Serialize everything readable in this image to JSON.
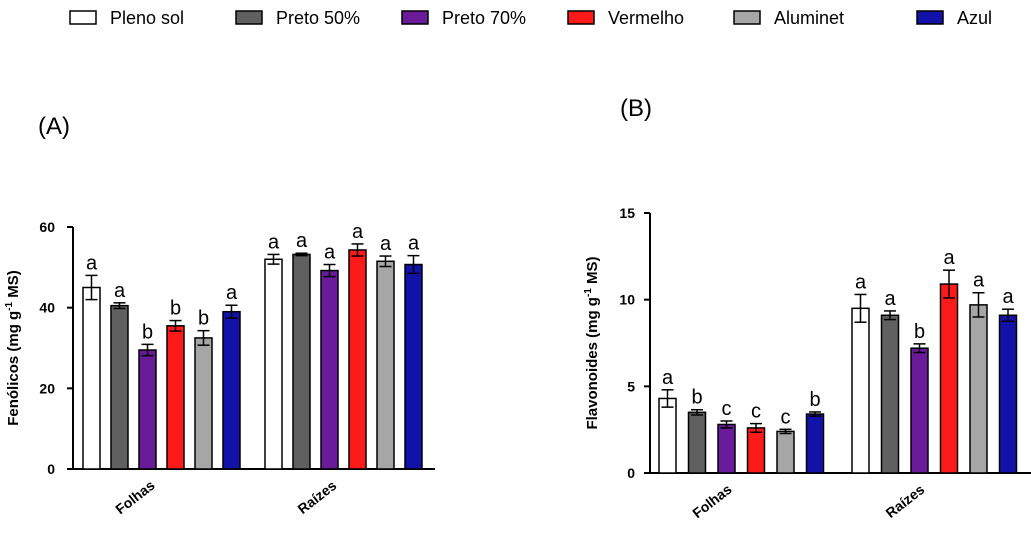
{
  "legend": [
    {
      "label": "Pleno sol",
      "color": "#ffffff"
    },
    {
      "label": "Preto 50%",
      "color": "#606060"
    },
    {
      "label": "Preto 70%",
      "color": "#6a1b9a"
    },
    {
      "label": "Vermelho",
      "color": "#ff1a1a"
    },
    {
      "label": "Aluminet",
      "color": "#a6a6a6"
    },
    {
      "label": "Azul",
      "color": "#1212a8"
    }
  ],
  "chart_data": [
    {
      "type": "bar",
      "panel_label": "(A)",
      "ylabel_main": "Fenólicos (mg g",
      "ylabel_sup": "-1",
      "ylabel_end": " MS)",
      "categories": [
        "Folhas",
        "Raízes"
      ],
      "ylim": [
        0,
        60
      ],
      "yticks": [
        0,
        20,
        40,
        60
      ],
      "series": [
        {
          "name": "Pleno sol",
          "values": [
            45,
            52
          ],
          "errors": [
            3,
            1.2
          ],
          "letters": [
            "a",
            "a"
          ]
        },
        {
          "name": "Preto 50%",
          "values": [
            40.5,
            53.2
          ],
          "errors": [
            0.7,
            0.3
          ],
          "letters": [
            "a",
            "a"
          ]
        },
        {
          "name": "Preto 70%",
          "values": [
            29.5,
            49.2
          ],
          "errors": [
            1.4,
            1.5
          ],
          "letters": [
            "b",
            "a"
          ]
        },
        {
          "name": "Vermelho",
          "values": [
            35.5,
            54.3
          ],
          "errors": [
            1.3,
            1.5
          ],
          "letters": [
            "b",
            "a"
          ]
        },
        {
          "name": "Aluminet",
          "values": [
            32.5,
            51.5
          ],
          "errors": [
            1.8,
            1.3
          ],
          "letters": [
            "b",
            "a"
          ]
        },
        {
          "name": "Azul",
          "values": [
            39,
            50.7
          ],
          "errors": [
            1.6,
            2.2
          ],
          "letters": [
            "a",
            "a"
          ]
        }
      ]
    },
    {
      "type": "bar",
      "panel_label": "(B)",
      "ylabel_main": "Flavonoides (mg g",
      "ylabel_sup": "-1",
      "ylabel_end": " MS)",
      "categories": [
        "Folhas",
        "Raízes"
      ],
      "ylim": [
        0,
        15
      ],
      "yticks": [
        0,
        5,
        10,
        15
      ],
      "series": [
        {
          "name": "Pleno sol",
          "values": [
            4.3,
            9.5
          ],
          "errors": [
            0.5,
            0.8
          ],
          "letters": [
            "a",
            "a"
          ]
        },
        {
          "name": "Preto 50%",
          "values": [
            3.5,
            9.1
          ],
          "errors": [
            0.15,
            0.25
          ],
          "letters": [
            "b",
            "a"
          ]
        },
        {
          "name": "Preto 70%",
          "values": [
            2.8,
            7.2
          ],
          "errors": [
            0.2,
            0.25
          ],
          "letters": [
            "c",
            "b"
          ]
        },
        {
          "name": "Vermelho",
          "values": [
            2.6,
            10.9
          ],
          "errors": [
            0.25,
            0.8
          ],
          "letters": [
            "c",
            "a"
          ]
        },
        {
          "name": "Aluminet",
          "values": [
            2.4,
            9.7
          ],
          "errors": [
            0.12,
            0.7
          ],
          "letters": [
            "c",
            "a"
          ]
        },
        {
          "name": "Azul",
          "values": [
            3.4,
            9.1
          ],
          "errors": [
            0.12,
            0.35
          ],
          "letters": [
            "b",
            "a"
          ]
        }
      ]
    }
  ]
}
